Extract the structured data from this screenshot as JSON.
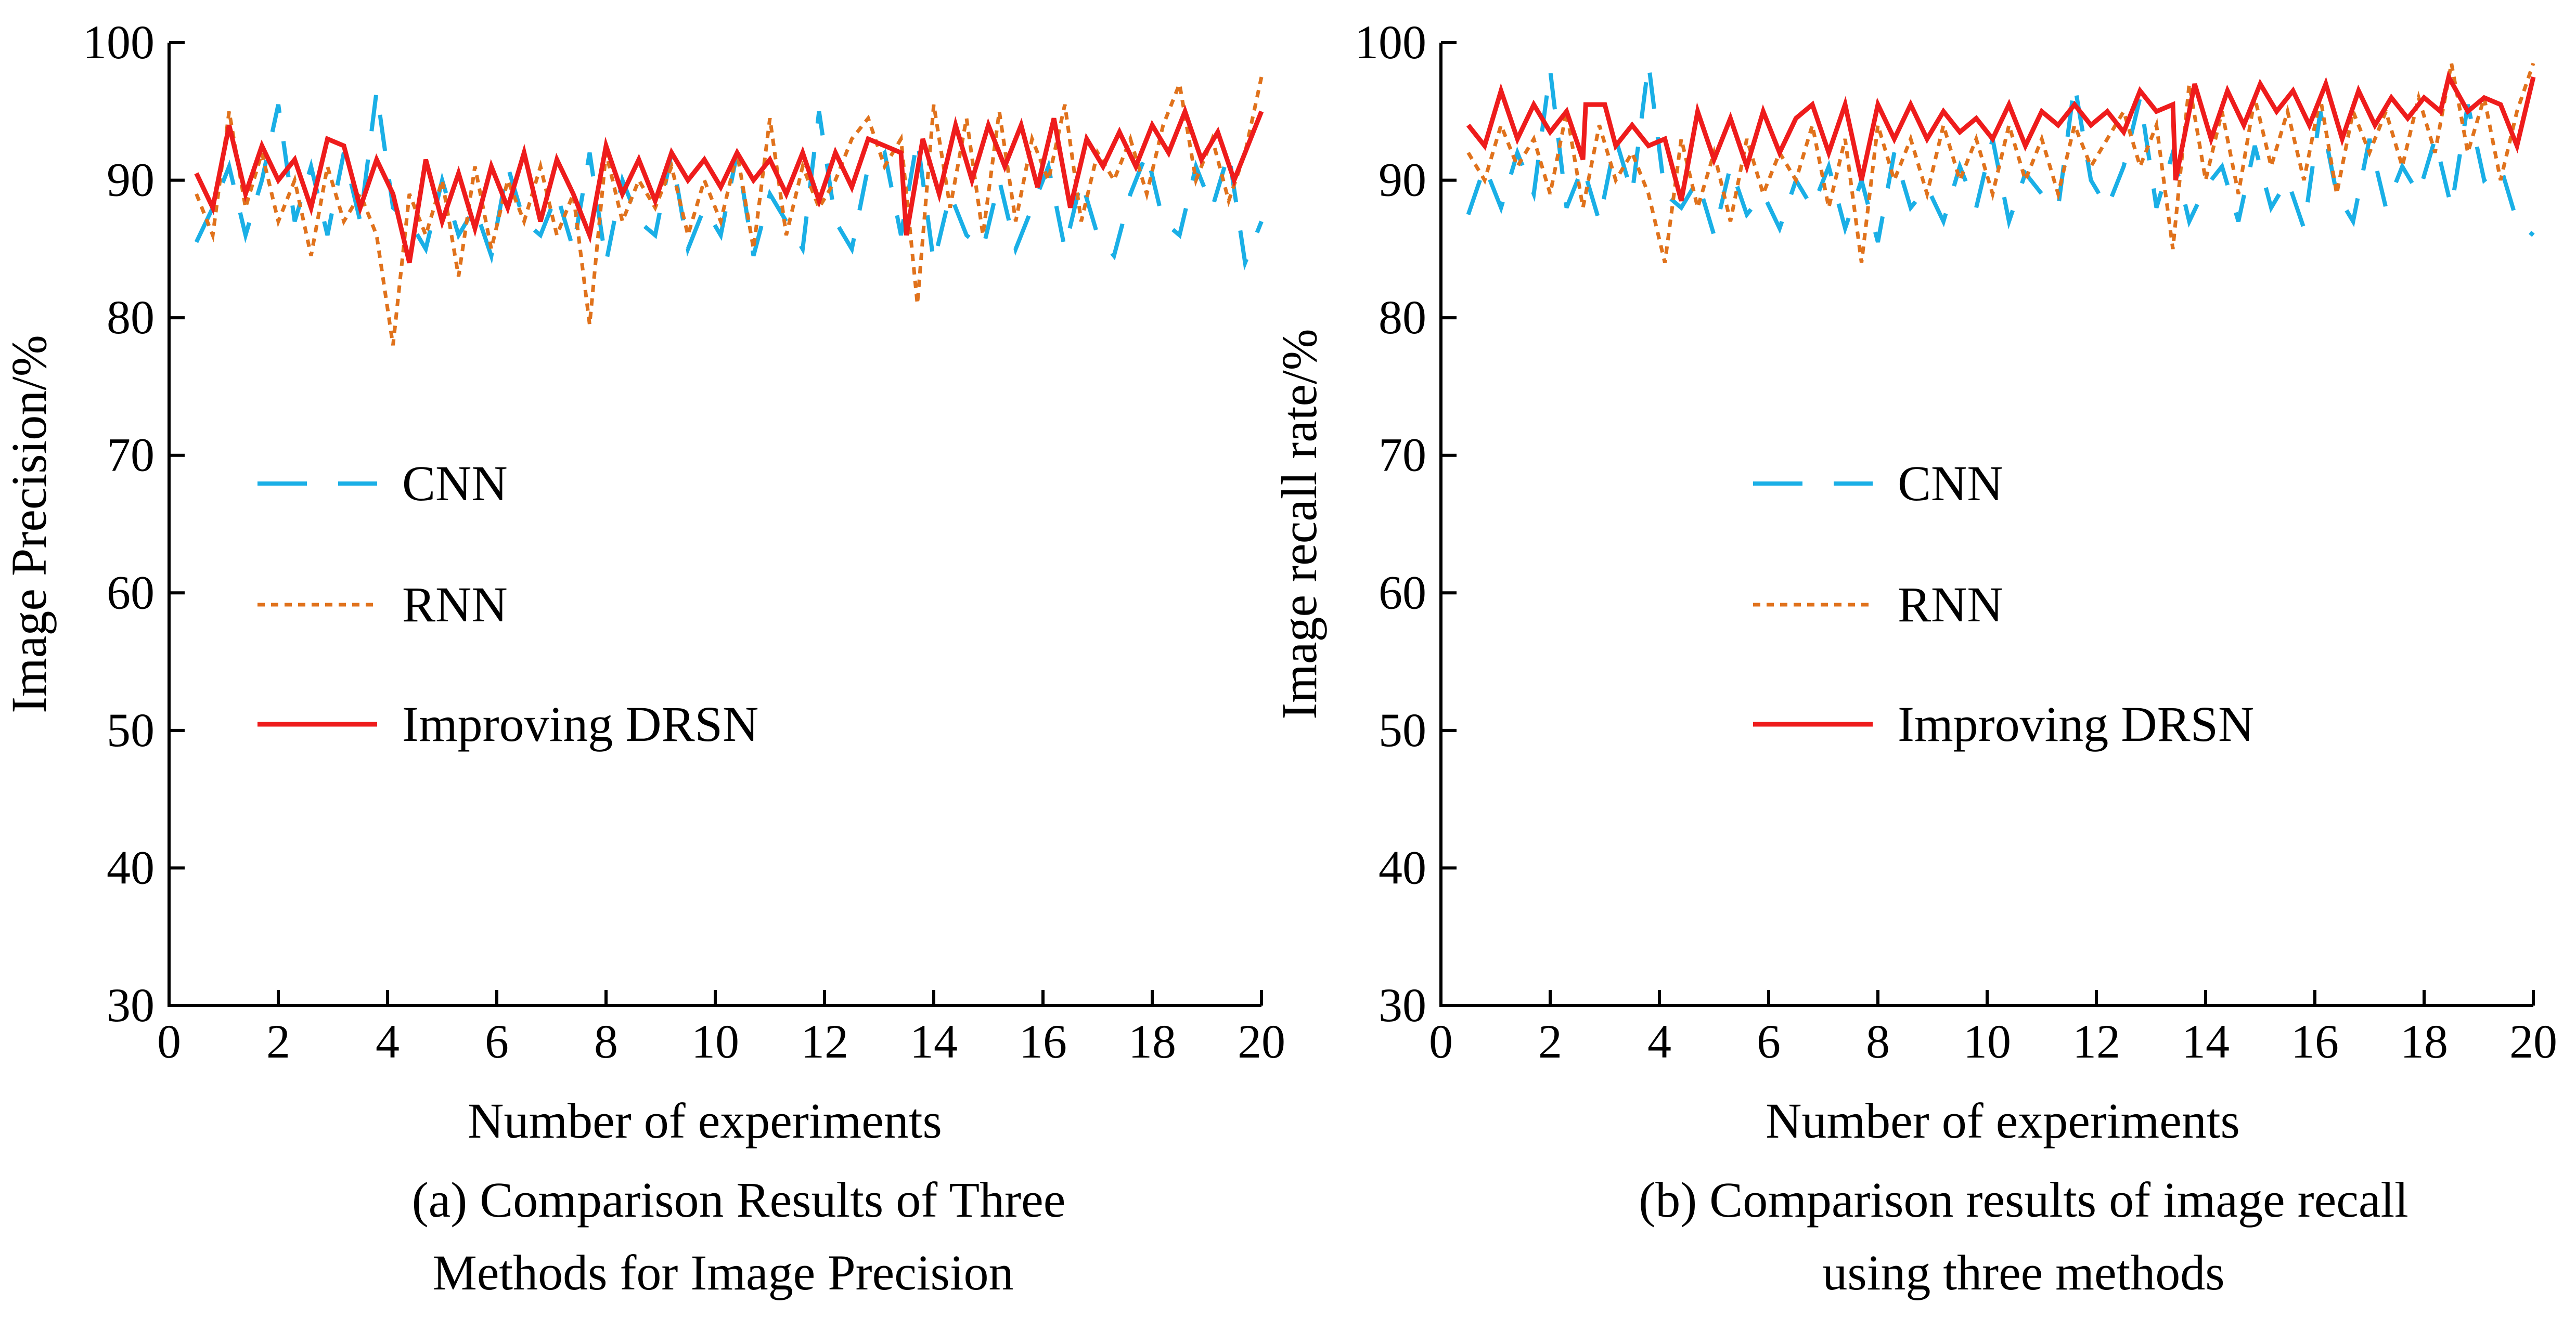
{
  "colors": {
    "cnn": "#1AAFE6",
    "rnn": "#E0721C",
    "drsn": "#EE1C1C",
    "axis": "#000000"
  },
  "chart_data": [
    {
      "type": "line",
      "caption_line1": "(a) Comparison Results of Three",
      "caption_line2": "Methods for Image Precision",
      "xlabel": "Number of experiments",
      "ylabel": "Image Precision/%",
      "xlim": [
        0,
        20
      ],
      "ylim": [
        30,
        100
      ],
      "xticks": [
        0,
        2,
        4,
        6,
        8,
        10,
        12,
        14,
        16,
        18,
        20
      ],
      "yticks": [
        30,
        40,
        50,
        60,
        70,
        80,
        90,
        100
      ],
      "grid": false,
      "legend_position": "center-left",
      "series": [
        {
          "name": "CNN",
          "style": "dashed",
          "x": [
            0.5,
            0.8,
            1.1,
            1.4,
            1.7,
            2.0,
            2.3,
            2.6,
            2.9,
            3.2,
            3.5,
            3.8,
            4.1,
            4.4,
            4.7,
            5.0,
            5.3,
            5.6,
            5.9,
            6.2,
            6.5,
            6.8,
            7.1,
            7.4,
            7.7,
            8.0,
            8.3,
            8.6,
            8.9,
            9.2,
            9.5,
            9.8,
            10.1,
            10.4,
            10.7,
            11.0,
            11.3,
            11.6,
            11.9,
            12.2,
            12.5,
            12.8,
            13.1,
            13.4,
            13.7,
            14.0,
            14.3,
            14.6,
            14.9,
            15.2,
            15.5,
            15.8,
            16.1,
            16.4,
            16.7,
            17.0,
            17.3,
            17.6,
            17.9,
            18.2,
            18.5,
            18.8,
            19.1,
            19.4,
            19.7,
            20.0
          ],
          "values": [
            85.5,
            88,
            91,
            86,
            90,
            95.5,
            87,
            91,
            86,
            92,
            87,
            96.5,
            88,
            87,
            85,
            90,
            86,
            88,
            84.5,
            91,
            87,
            86,
            89,
            85,
            92,
            84,
            90,
            87,
            86,
            92,
            85,
            88,
            86,
            92,
            84.5,
            89,
            87,
            85,
            95,
            87,
            85,
            91,
            92,
            86,
            93,
            84,
            89,
            86,
            85,
            90,
            85,
            88,
            91,
            85,
            90,
            86,
            84.5,
            89,
            92,
            87,
            86,
            91,
            88,
            92,
            84,
            87
          ]
        },
        {
          "name": "RNN",
          "style": "dotted",
          "x": [
            0.5,
            0.8,
            1.1,
            1.4,
            1.7,
            2.0,
            2.3,
            2.6,
            2.9,
            3.2,
            3.5,
            3.8,
            4.1,
            4.4,
            4.7,
            5.0,
            5.3,
            5.6,
            5.9,
            6.2,
            6.5,
            6.8,
            7.1,
            7.4,
            7.7,
            8.0,
            8.3,
            8.6,
            8.9,
            9.2,
            9.5,
            9.8,
            10.1,
            10.4,
            10.7,
            11.0,
            11.3,
            11.6,
            11.9,
            12.2,
            12.5,
            12.8,
            13.1,
            13.4,
            13.7,
            14.0,
            14.3,
            14.6,
            14.9,
            15.2,
            15.5,
            15.8,
            16.1,
            16.4,
            16.7,
            17.0,
            17.3,
            17.6,
            17.9,
            18.2,
            18.5,
            18.8,
            19.1,
            19.4,
            19.7,
            20.0
          ],
          "values": [
            89,
            86,
            95,
            88,
            92,
            87,
            90,
            84.5,
            91,
            87,
            89,
            86,
            78,
            89,
            86,
            90,
            83,
            91,
            85,
            90,
            87,
            91,
            86,
            89,
            79.5,
            92,
            87,
            90,
            88,
            91,
            86,
            90,
            87,
            92,
            85,
            94.5,
            86,
            91,
            88,
            90,
            93,
            94.5,
            91,
            93,
            81,
            95.5,
            88,
            94.5,
            86,
            95,
            87,
            93,
            90,
            95.5,
            87,
            92,
            90,
            93,
            89,
            94,
            97,
            90,
            93,
            88.5,
            92,
            97.5
          ]
        },
        {
          "name": "Improving DRSN",
          "style": "solid",
          "x": [
            0.5,
            0.8,
            1.1,
            1.4,
            1.7,
            2.0,
            2.3,
            2.6,
            2.9,
            3.2,
            3.5,
            3.8,
            4.1,
            4.4,
            4.7,
            5.0,
            5.3,
            5.6,
            5.9,
            6.2,
            6.5,
            6.8,
            7.1,
            7.4,
            7.7,
            8.0,
            8.3,
            8.6,
            8.9,
            9.2,
            9.5,
            9.8,
            10.1,
            10.4,
            10.7,
            11.0,
            11.3,
            11.6,
            11.9,
            12.2,
            12.5,
            12.8,
            13.1,
            13.4,
            13.5,
            13.8,
            14.1,
            14.4,
            14.7,
            15.0,
            15.3,
            15.6,
            15.9,
            16.2,
            16.5,
            16.8,
            17.1,
            17.4,
            17.7,
            18.0,
            18.3,
            18.6,
            18.9,
            19.2,
            19.5,
            19.8,
            20.0
          ],
          "values": [
            90.5,
            88,
            94,
            89,
            92.5,
            90,
            91.5,
            88,
            93,
            92.5,
            88,
            91.5,
            89,
            84,
            91.5,
            87,
            90.5,
            86.5,
            91,
            88,
            92,
            87,
            91.5,
            89,
            86,
            92.5,
            89,
            91.5,
            88.5,
            92,
            90,
            91.5,
            89.5,
            92,
            90,
            91.5,
            89,
            92,
            88.5,
            92,
            89.5,
            93,
            92.5,
            92,
            86,
            93,
            89,
            94,
            90,
            94,
            91,
            94,
            89.5,
            94.5,
            88,
            93,
            91,
            93.5,
            91,
            94,
            92,
            95,
            91.5,
            93.5,
            90,
            93,
            95
          ]
        }
      ]
    },
    {
      "type": "line",
      "caption_line1": "(b) Comparison results of image recall",
      "caption_line2": "using three methods",
      "xlabel": "Number of experiments",
      "ylabel": "Image recall rate/%",
      "xlim": [
        0,
        20
      ],
      "ylim": [
        30,
        100
      ],
      "xticks": [
        0,
        2,
        4,
        6,
        8,
        10,
        12,
        14,
        16,
        18,
        20
      ],
      "yticks": [
        30,
        40,
        50,
        60,
        70,
        80,
        90,
        100
      ],
      "grid": false,
      "legend_position": "center-left",
      "series": [
        {
          "name": "CNN",
          "style": "dashed",
          "x": [
            0.5,
            0.8,
            1.1,
            1.4,
            1.7,
            2.0,
            2.3,
            2.6,
            2.9,
            3.2,
            3.5,
            3.8,
            4.1,
            4.4,
            4.7,
            5.0,
            5.3,
            5.6,
            5.9,
            6.2,
            6.5,
            6.8,
            7.1,
            7.4,
            7.7,
            8.0,
            8.3,
            8.6,
            8.9,
            9.2,
            9.5,
            9.8,
            10.1,
            10.4,
            10.7,
            11.0,
            11.3,
            11.6,
            11.9,
            12.2,
            12.5,
            12.8,
            13.1,
            13.4,
            13.7,
            14.0,
            14.3,
            14.6,
            14.9,
            15.2,
            15.5,
            15.8,
            16.1,
            16.4,
            16.7,
            17.0,
            17.3,
            17.6,
            17.9,
            18.2,
            18.5,
            18.8,
            19.1,
            19.4,
            19.7,
            20.0
          ],
          "values": [
            87.5,
            91,
            88,
            92,
            89,
            98,
            88,
            91,
            87,
            93,
            89,
            98.5,
            89,
            88,
            90,
            86,
            91,
            87.5,
            89,
            86.5,
            90,
            88,
            91,
            86.5,
            90,
            85.5,
            92,
            88,
            89.5,
            87,
            91,
            88,
            93,
            87,
            90.5,
            89,
            88,
            97,
            90,
            88,
            91,
            96,
            88,
            92,
            87,
            89.5,
            91,
            87,
            92.5,
            88,
            90,
            86.5,
            95,
            89,
            87,
            93,
            88,
            91,
            89,
            93,
            88,
            95.5,
            90,
            91,
            87,
            86
          ]
        },
        {
          "name": "RNN",
          "style": "dotted",
          "x": [
            0.5,
            0.8,
            1.1,
            1.4,
            1.7,
            2.0,
            2.3,
            2.6,
            2.9,
            3.2,
            3.5,
            3.8,
            4.1,
            4.4,
            4.7,
            5.0,
            5.3,
            5.6,
            5.9,
            6.2,
            6.5,
            6.8,
            7.1,
            7.4,
            7.7,
            8.0,
            8.3,
            8.6,
            8.9,
            9.2,
            9.5,
            9.8,
            10.1,
            10.4,
            10.7,
            11.0,
            11.3,
            11.6,
            11.9,
            12.2,
            12.5,
            12.8,
            13.1,
            13.4,
            13.7,
            14.0,
            14.3,
            14.6,
            14.9,
            15.2,
            15.5,
            15.8,
            16.1,
            16.4,
            16.7,
            17.0,
            17.3,
            17.6,
            17.9,
            18.2,
            18.5,
            18.8,
            19.1,
            19.4,
            19.7,
            20.0
          ],
          "values": [
            92,
            90,
            94,
            91,
            93,
            89,
            95,
            88,
            94,
            90,
            92,
            89,
            84,
            93,
            88,
            92,
            87,
            93,
            89,
            92,
            90,
            94,
            88,
            93,
            84,
            94,
            90,
            93,
            89,
            94,
            90,
            93,
            89,
            94,
            90,
            93,
            89,
            94,
            91,
            93,
            95,
            91,
            94,
            85,
            97,
            90,
            95,
            89,
            96,
            91,
            95,
            90,
            96,
            89,
            95,
            92,
            95,
            91,
            96,
            92,
            98.5,
            92,
            96,
            90,
            95,
            98.5
          ]
        },
        {
          "name": "Improving DRSN",
          "style": "solid",
          "x": [
            0.5,
            0.8,
            1.1,
            1.4,
            1.7,
            2.0,
            2.3,
            2.6,
            2.65,
            3.0,
            3.2,
            3.5,
            3.8,
            4.1,
            4.4,
            4.7,
            5.0,
            5.3,
            5.6,
            5.9,
            6.2,
            6.5,
            6.8,
            7.1,
            7.4,
            7.7,
            8.0,
            8.3,
            8.6,
            8.9,
            9.2,
            9.5,
            9.8,
            10.1,
            10.4,
            10.7,
            11.0,
            11.3,
            11.6,
            11.9,
            12.2,
            12.5,
            12.8,
            13.1,
            13.4,
            13.45,
            13.8,
            14.1,
            14.4,
            14.7,
            15.0,
            15.3,
            15.6,
            15.9,
            16.2,
            16.5,
            16.8,
            17.1,
            17.4,
            17.7,
            18.0,
            18.3,
            18.45,
            18.8,
            19.1,
            19.4,
            19.7,
            20.0
          ],
          "values": [
            94,
            92.5,
            96.5,
            93,
            95.5,
            93.5,
            95,
            91.5,
            95.5,
            95.5,
            92.5,
            94,
            92.5,
            93,
            88.5,
            95,
            91.5,
            94.5,
            91,
            95,
            92,
            94.5,
            95.5,
            92,
            95.5,
            90,
            95.5,
            93,
            95.5,
            93,
            95,
            93.5,
            94.5,
            93,
            95.5,
            92.5,
            95,
            94,
            95.5,
            94,
            95,
            93.5,
            96.5,
            95,
            95.5,
            90,
            97,
            93,
            96.5,
            94,
            97,
            95,
            96.5,
            94,
            97,
            93,
            96.5,
            94,
            96,
            94.5,
            96,
            95,
            97.5,
            95,
            96,
            95.5,
            92.5,
            97.5
          ]
        }
      ]
    }
  ]
}
